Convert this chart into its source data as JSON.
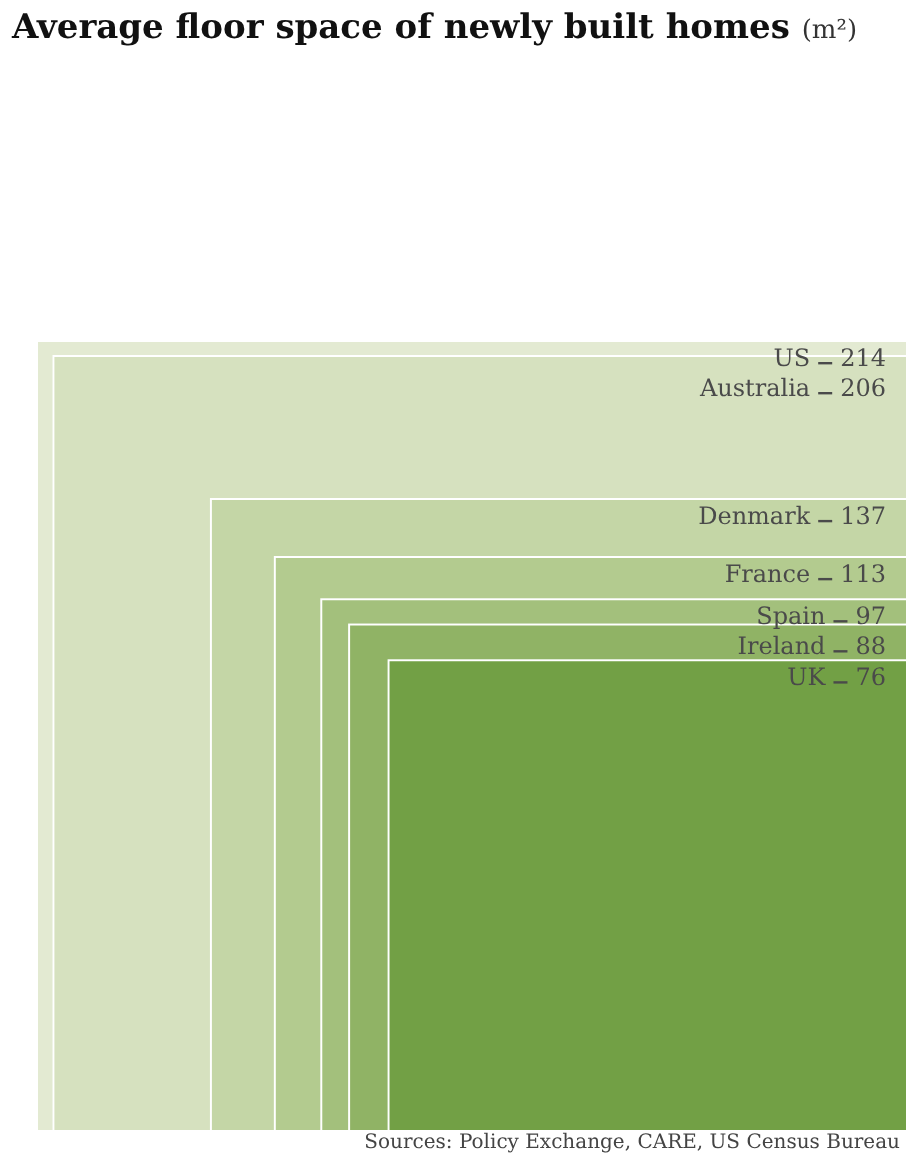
{
  "chart_data": {
    "type": "other",
    "title": "Average floor space of newly built homes",
    "ylabel": "(m²)",
    "categories": [
      "US",
      "Australia",
      "Denmark",
      "France",
      "Spain",
      "Ireland",
      "UK"
    ],
    "values": [
      214,
      206,
      137,
      113,
      97,
      88,
      76
    ],
    "data_labels": true,
    "colors": [
      "#e3ead2",
      "#d6e1bf",
      "#c4d6a6",
      "#b3cb8f",
      "#a3c07c",
      "#90b365",
      "#72a045"
    ],
    "annotations": [
      "Sources: Policy Exchange, CARE, US Census Bureau"
    ]
  }
}
